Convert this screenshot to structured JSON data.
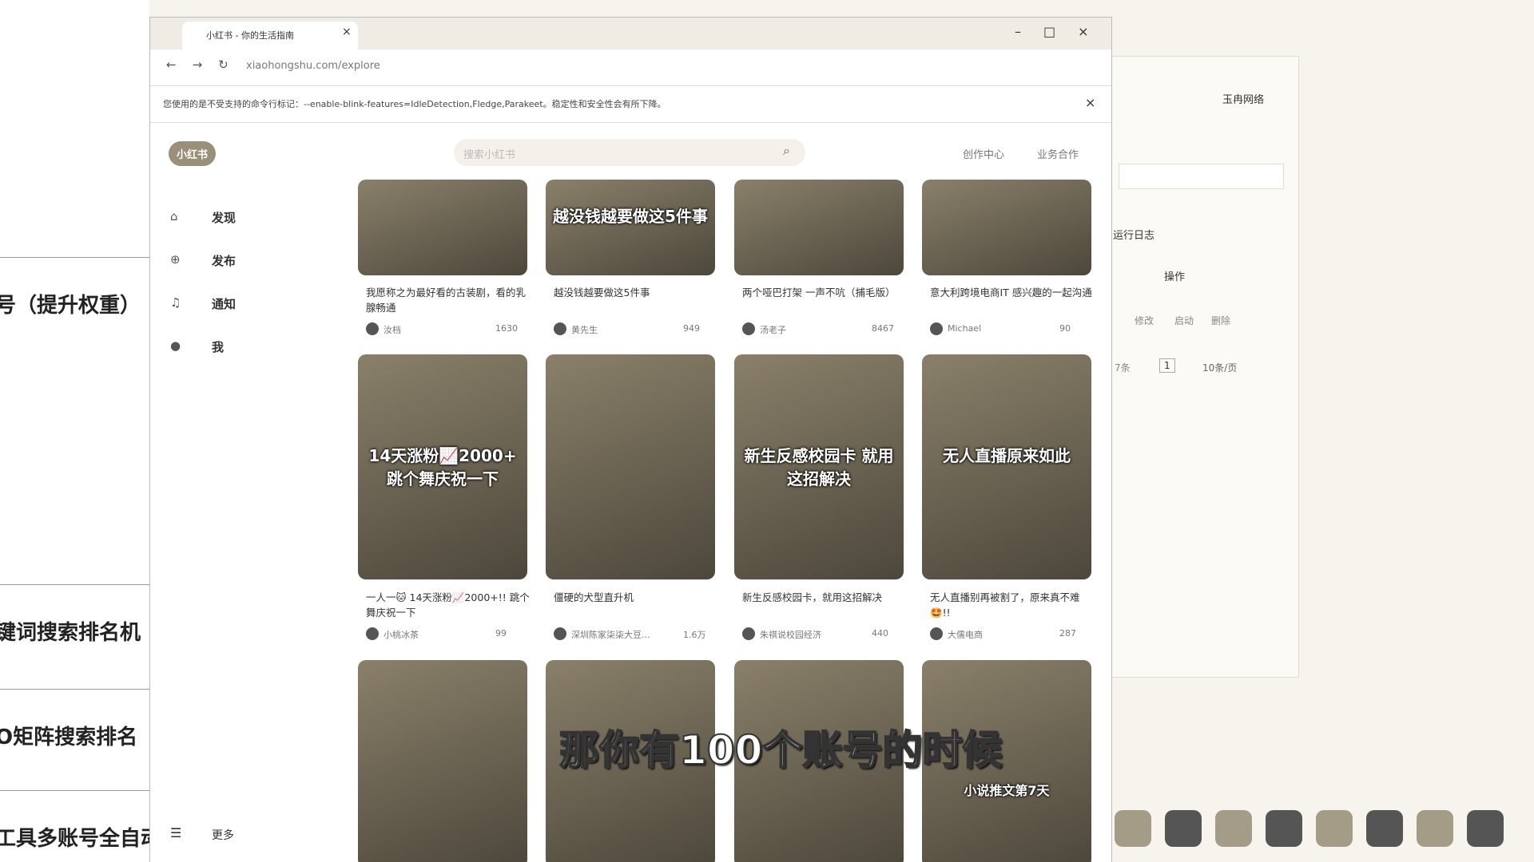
{
  "browser": {
    "tab_title": "小红书 - 你的生活指南",
    "url": "xiaohongshu.com/explore",
    "warning": "您使用的是不受支持的命令行标记：--enable-blink-features=IdleDetection,Fledge,Parakeet。稳定性和安全性会有所下降。"
  },
  "header": {
    "logo": "小红书",
    "search_placeholder": "搜索小红书",
    "nav": [
      "创作中心",
      "业务合作"
    ]
  },
  "sidebar": {
    "items": [
      "发现",
      "发布",
      "通知",
      "我"
    ],
    "more": "更多"
  },
  "cards": [
    {
      "title": "我愿称之为最好看的古装剧，看的乳腺畅通",
      "author": "汝档",
      "likes": "1630"
    },
    {
      "title": "越没钱越要做这5件事",
      "author": "黄先生",
      "likes": "949",
      "overlay": "越没钱越要做这5件事"
    },
    {
      "title": "两个哑巴打架 一声不吭（捕毛版）",
      "author": "汤老子",
      "likes": "8467"
    },
    {
      "title": "意大利跨境电商IT 感兴趣的一起沟通",
      "author": "Michael",
      "likes": "90"
    },
    {
      "title": "一人一🐱 14天涨粉📈2000+!! 跳个舞庆祝一下",
      "author": "小桃冰茶",
      "likes": "99",
      "overlay": "14天涨粉📈2000+ 跳个舞庆祝一下"
    },
    {
      "title": "僵硬的犬型直升机",
      "author": "深圳陈家柒柒大豆...",
      "likes": "1.6万"
    },
    {
      "title": "新生反感校园卡，就用这招解决",
      "author": "朱祺说校园经济",
      "likes": "440",
      "overlay": "新生反感校园卡 就用这招解决"
    },
    {
      "title": "无人直播别再被割了，原来真不难🤩!!",
      "author": "大儒电商",
      "likes": "287",
      "overlay": "无人直播原来如此"
    }
  ],
  "partial_card_overlay": "小说推文第7天",
  "video_caption": "那你有100个账号的时候",
  "background_window": {
    "user": "玉冉网络",
    "toolbar_label": "运行日志",
    "column": "操作",
    "actions": [
      "修改",
      "启动",
      "删除"
    ],
    "pagination": {
      "total": "7条",
      "page": "1",
      "per_page": "10条/页"
    }
  },
  "background_doc": {
    "lines": [
      "号（提升权重）",
      "键词搜索排名机",
      "O矩阵搜索排名",
      "工具多账号全自动"
    ]
  }
}
